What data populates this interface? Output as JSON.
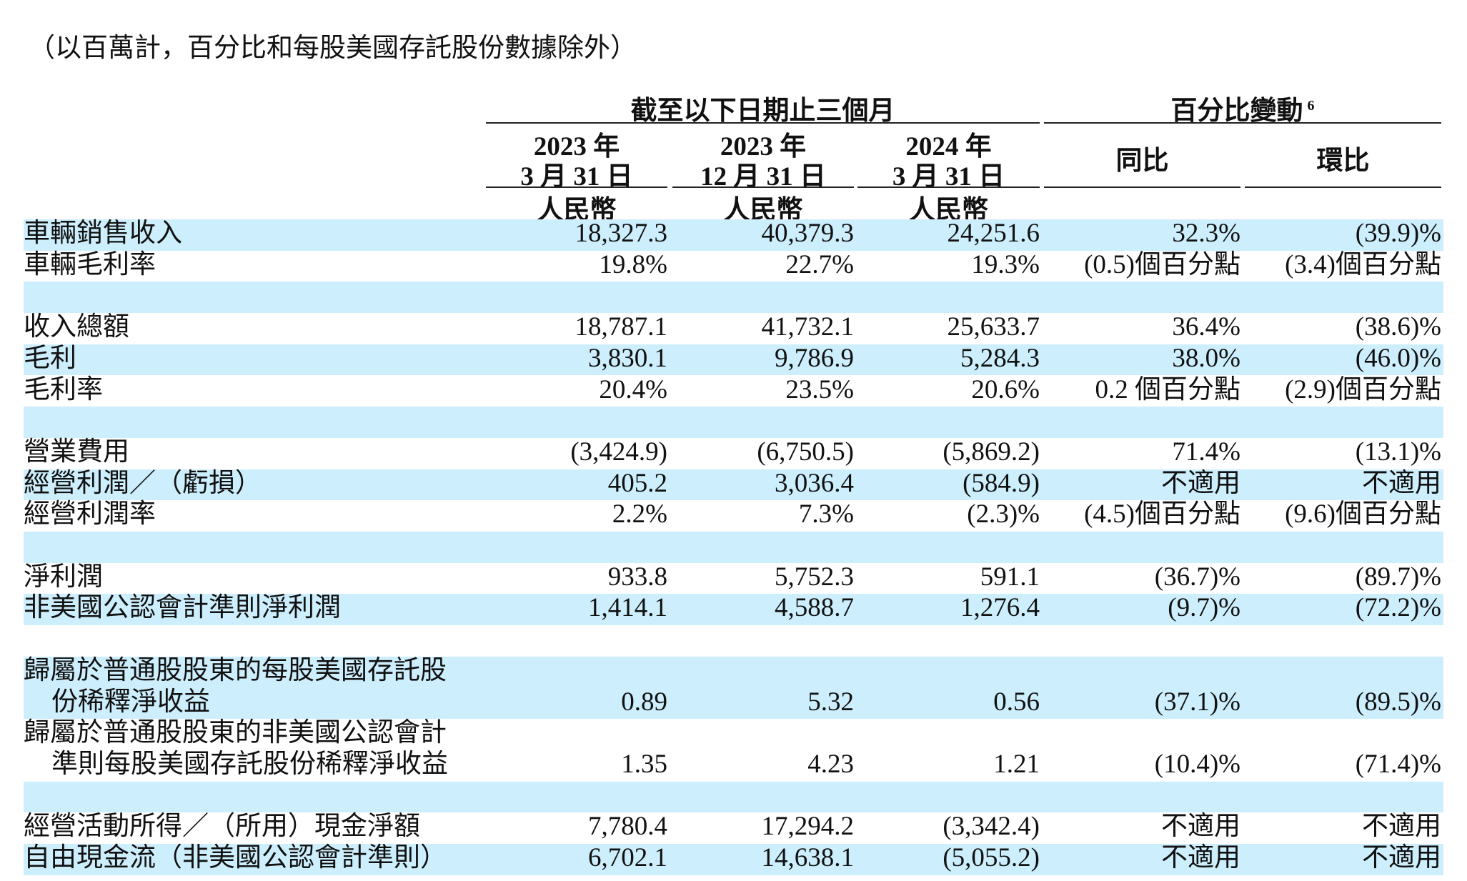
{
  "note": "（以百萬計，百分比和每股美國存託股份數據除外）",
  "table": {
    "group_headers": [
      "截至以下日期止三個月",
      "百分比變動"
    ],
    "footnote_marker": "6",
    "columns": [
      {
        "line1": "2023 年",
        "line2": "3 月 31 日",
        "unit": "人民幣"
      },
      {
        "line1": "2023 年",
        "line2": "12 月 31 日",
        "unit": "人民幣"
      },
      {
        "line1": "2024 年",
        "line2": "3 月 31 日",
        "unit": "人民幣"
      }
    ],
    "change_columns": [
      "同比",
      "環比"
    ],
    "sections": [
      {
        "rows": [
          [
            "車輛銷售收入",
            "18,327.3",
            "40,379.3",
            "24,251.6",
            "32.3%",
            "(39.9)%"
          ],
          [
            "車輛毛利率",
            "19.8%",
            "22.7%",
            "19.3%",
            "(0.5)個百分點",
            "(3.4)個百分點"
          ]
        ]
      },
      {
        "rows": [
          [
            "收入總額",
            "18,787.1",
            "41,732.1",
            "25,633.7",
            "36.4%",
            "(38.6)%"
          ],
          [
            "毛利",
            "3,830.1",
            "9,786.9",
            "5,284.3",
            "38.0%",
            "(46.0)%"
          ],
          [
            "毛利率",
            "20.4%",
            "23.5%",
            "20.6%",
            "0.2 個百分點",
            "(2.9)個百分點"
          ]
        ]
      },
      {
        "rows": [
          [
            "營業費用",
            "(3,424.9)",
            "(6,750.5)",
            "(5,869.2)",
            "71.4%",
            "(13.1)%"
          ],
          [
            "經營利潤／（虧損）",
            "405.2",
            "3,036.4",
            "(584.9)",
            "不適用",
            "不適用"
          ],
          [
            "經營利潤率",
            "2.2%",
            "7.3%",
            "(2.3)%",
            "(4.5)個百分點",
            "(9.6)個百分點"
          ]
        ]
      },
      {
        "rows": [
          [
            "淨利潤",
            "933.8",
            "5,752.3",
            "591.1",
            "(36.7)%",
            "(89.7)%"
          ],
          [
            "非美國公認會計準則淨利潤",
            "1,414.1",
            "4,588.7",
            "1,276.4",
            "(9.7)%",
            "(72.2)%"
          ]
        ]
      },
      {
        "rows": [
          [
            [
              "歸屬於普通股股東的每股美國存託股",
              "份稀釋淨收益"
            ],
            "0.89",
            "5.32",
            "0.56",
            "(37.1)%",
            "(89.5)%"
          ],
          [
            [
              "歸屬於普通股股東的非美國公認會計",
              "準則每股美國存託股份稀釋淨收益"
            ],
            "1.35",
            "4.23",
            "1.21",
            "(10.4)%",
            "(71.4)%"
          ]
        ]
      },
      {
        "rows": [
          [
            "經營活動所得／（所用）現金淨額",
            "7,780.4",
            "17,294.2",
            "(3,342.4)",
            "不適用",
            "不適用"
          ],
          [
            "自由現金流（非美國公認會計準則）",
            "6,702.1",
            "14,638.1",
            "(5,055.2)",
            "不適用",
            "不適用"
          ]
        ]
      }
    ]
  }
}
